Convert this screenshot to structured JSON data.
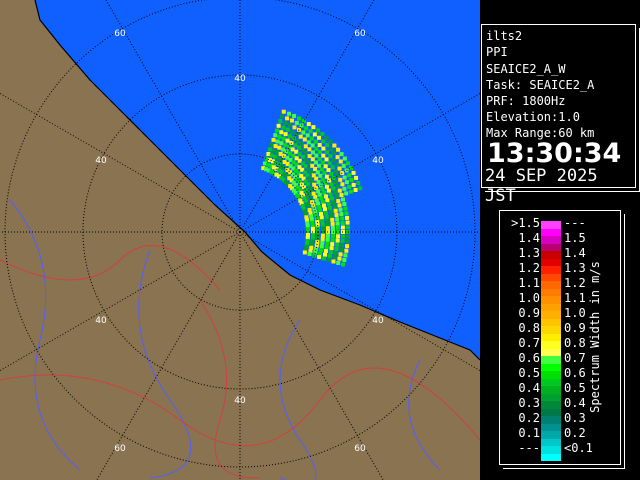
{
  "map": {
    "sea_color": "#1060ff",
    "land_color": "#8a7350",
    "range_ring_labels": [
      "40",
      "40",
      "40",
      "40",
      "40",
      "40",
      "60",
      "60",
      "60",
      "60"
    ],
    "range_unit": "km"
  },
  "info": {
    "site": "ilts2",
    "product": "PPI",
    "scan": "SEAICE2_A_W",
    "task": "Task: SEAICE2_A",
    "prf": "PRF: 1800Hz",
    "elevation": "Elevation:1.0",
    "max_range": "Max Range:60 km",
    "time": "13:30:34",
    "date": "24 SEP 2025 JST"
  },
  "legend": {
    "title": "Spectrum Width in m/s",
    "left_labels": [
      ">1.5",
      "1.4",
      "1.3",
      "1.2",
      "1.1",
      "1.0",
      "0.9",
      "0.8",
      "0.7",
      "0.6",
      "0.5",
      "0.4",
      "0.3",
      "0.2",
      "0.1",
      "---"
    ],
    "right_labels": [
      "---",
      "1.5",
      "1.4",
      "1.3",
      "1.2",
      "1.1",
      "1.0",
      "0.9",
      "0.8",
      "0.7",
      "0.6",
      "0.5",
      "0.4",
      "0.3",
      "0.2",
      "<0.1"
    ],
    "colors": [
      "#ff40ff",
      "#ff00ff",
      "#d800c0",
      "#b80070",
      "#c80000",
      "#e00000",
      "#ff2000",
      "#ff4800",
      "#ff6800",
      "#ff7c00",
      "#ff9000",
      "#ffa000",
      "#ffb000",
      "#ffc400",
      "#ffd800",
      "#ffee00",
      "#ffff20",
      "#ffff50",
      "#40ff40",
      "#00ff00",
      "#00e000",
      "#00c820",
      "#00b020",
      "#00a030",
      "#008838",
      "#007848",
      "#008070",
      "#009090",
      "#00a8a8",
      "#00c8c8",
      "#00e0e0",
      "#00ffff"
    ]
  }
}
